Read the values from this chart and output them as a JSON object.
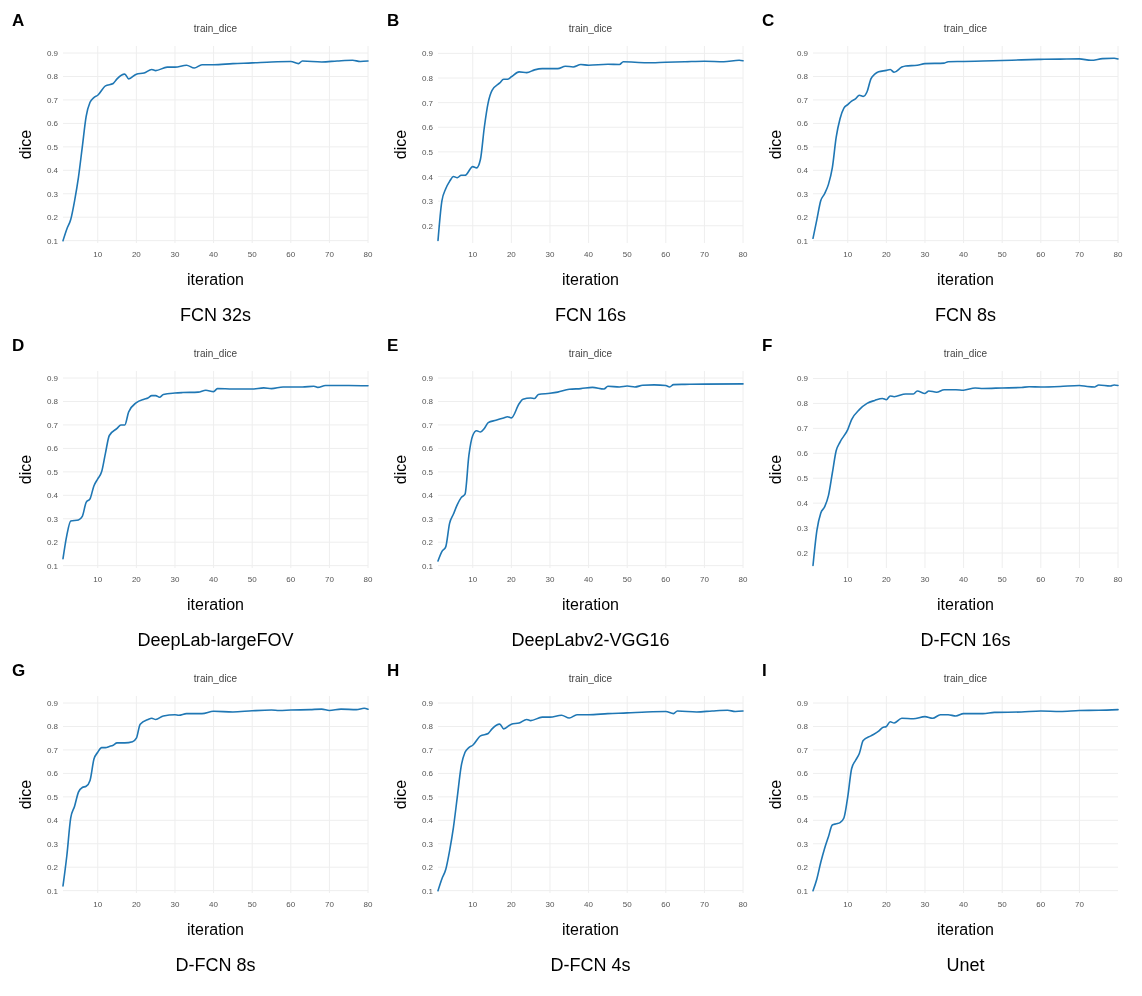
{
  "chart_data": [
    {
      "type": "line",
      "title": "train_dice",
      "xlabel": "iteration",
      "ylabel": "dice",
      "annotations": [
        "A",
        "FCN 32s"
      ],
      "color": "#1f77b4",
      "grid": true,
      "xlim": [
        1,
        80
      ],
      "xticks": [
        10,
        20,
        30,
        40,
        50,
        60,
        70,
        80
      ],
      "ylim": [
        0.09,
        0.93
      ],
      "yticks": [
        0.1,
        0.2,
        0.3,
        0.4,
        0.5,
        0.6,
        0.7,
        0.8,
        0.9
      ],
      "x": [
        1,
        2,
        3,
        4,
        5,
        6,
        7,
        8,
        9,
        10,
        12,
        14,
        15,
        17,
        18,
        20,
        22,
        24,
        25,
        28,
        30,
        33,
        35,
        37,
        40,
        45,
        50,
        55,
        60,
        62,
        63,
        68,
        72,
        76,
        78,
        80
      ],
      "values": [
        0.1,
        0.15,
        0.19,
        0.27,
        0.37,
        0.5,
        0.63,
        0.69,
        0.71,
        0.72,
        0.76,
        0.77,
        0.79,
        0.81,
        0.79,
        0.81,
        0.815,
        0.83,
        0.825,
        0.84,
        0.84,
        0.848,
        0.836,
        0.85,
        0.85,
        0.855,
        0.858,
        0.862,
        0.864,
        0.855,
        0.866,
        0.862,
        0.866,
        0.869,
        0.864,
        0.866
      ]
    },
    {
      "type": "line",
      "title": "train_dice",
      "xlabel": "iteration",
      "ylabel": "dice",
      "annotations": [
        "B",
        "FCN 16s"
      ],
      "color": "#1f77b4",
      "grid": true,
      "xlim": [
        1,
        80
      ],
      "xticks": [
        10,
        20,
        30,
        40,
        50,
        60,
        70,
        80
      ],
      "ylim": [
        0.13,
        0.93
      ],
      "yticks": [
        0.2,
        0.3,
        0.4,
        0.5,
        0.6,
        0.7,
        0.8,
        0.9
      ],
      "x": [
        1,
        2,
        3,
        4,
        5,
        6,
        7,
        8,
        10,
        11,
        12,
        13,
        14,
        15,
        17,
        18,
        19,
        20,
        22,
        24,
        26,
        28,
        32,
        34,
        36,
        38,
        40,
        45,
        48,
        49,
        55,
        60,
        65,
        70,
        75,
        79,
        80
      ],
      "values": [
        0.14,
        0.3,
        0.35,
        0.38,
        0.4,
        0.395,
        0.405,
        0.405,
        0.44,
        0.435,
        0.47,
        0.6,
        0.7,
        0.75,
        0.78,
        0.795,
        0.795,
        0.805,
        0.825,
        0.822,
        0.833,
        0.838,
        0.838,
        0.848,
        0.845,
        0.855,
        0.852,
        0.856,
        0.855,
        0.866,
        0.862,
        0.864,
        0.866,
        0.868,
        0.866,
        0.872,
        0.87
      ]
    },
    {
      "type": "line",
      "title": "train_dice",
      "xlabel": "iteration",
      "ylabel": "dice",
      "annotations": [
        "C",
        "FCN 8s"
      ],
      "color": "#1f77b4",
      "grid": true,
      "xlim": [
        1,
        80
      ],
      "xticks": [
        10,
        20,
        30,
        40,
        50,
        60,
        70,
        80
      ],
      "ylim": [
        0.09,
        0.93
      ],
      "yticks": [
        0.1,
        0.2,
        0.3,
        0.4,
        0.5,
        0.6,
        0.7,
        0.8,
        0.9
      ],
      "x": [
        1,
        2,
        3,
        4,
        5,
        6,
        7,
        8,
        9,
        10,
        11,
        12,
        13,
        14,
        15,
        16,
        17,
        18,
        20,
        21,
        22,
        24,
        25,
        28,
        30,
        35,
        36,
        40,
        45,
        50,
        55,
        60,
        65,
        70,
        73,
        76,
        79,
        80
      ],
      "values": [
        0.11,
        0.19,
        0.27,
        0.3,
        0.34,
        0.41,
        0.54,
        0.62,
        0.665,
        0.68,
        0.695,
        0.705,
        0.72,
        0.715,
        0.735,
        0.79,
        0.81,
        0.82,
        0.826,
        0.83,
        0.818,
        0.84,
        0.845,
        0.848,
        0.855,
        0.857,
        0.863,
        0.864,
        0.866,
        0.868,
        0.871,
        0.873,
        0.874,
        0.875,
        0.869,
        0.876,
        0.878,
        0.875
      ]
    },
    {
      "type": "line",
      "title": "train_dice",
      "xlabel": "iteration",
      "ylabel": "dice",
      "annotations": [
        "D",
        "DeepLab-largeFOV"
      ],
      "color": "#1f77b4",
      "grid": true,
      "xlim": [
        1,
        80
      ],
      "xticks": [
        10,
        20,
        30,
        40,
        50,
        60,
        70,
        80
      ],
      "ylim": [
        0.09,
        0.93
      ],
      "yticks": [
        0.1,
        0.2,
        0.3,
        0.4,
        0.5,
        0.6,
        0.7,
        0.8,
        0.9
      ],
      "x": [
        1,
        2,
        3,
        5,
        6,
        7,
        8,
        9,
        10,
        11,
        12,
        13,
        15,
        16,
        17,
        18,
        20,
        22,
        23,
        24,
        25,
        26,
        27,
        30,
        32,
        36,
        38,
        40,
        41,
        45,
        50,
        53,
        55,
        58,
        63,
        66,
        67,
        69,
        75,
        80
      ],
      "values": [
        0.13,
        0.23,
        0.29,
        0.295,
        0.31,
        0.37,
        0.385,
        0.44,
        0.47,
        0.5,
        0.58,
        0.655,
        0.685,
        0.7,
        0.7,
        0.755,
        0.795,
        0.81,
        0.815,
        0.825,
        0.825,
        0.818,
        0.83,
        0.836,
        0.838,
        0.84,
        0.848,
        0.842,
        0.855,
        0.853,
        0.853,
        0.858,
        0.855,
        0.862,
        0.862,
        0.865,
        0.86,
        0.868,
        0.868,
        0.867
      ]
    },
    {
      "type": "line",
      "title": "train_dice",
      "xlabel": "iteration",
      "ylabel": "dice",
      "annotations": [
        "E",
        "DeepLabv2-VGG16"
      ],
      "color": "#1f77b4",
      "grid": true,
      "xlim": [
        1,
        80
      ],
      "xticks": [
        10,
        20,
        30,
        40,
        50,
        60,
        70,
        80
      ],
      "ylim": [
        0.09,
        0.93
      ],
      "yticks": [
        0.1,
        0.2,
        0.3,
        0.4,
        0.5,
        0.6,
        0.7,
        0.8,
        0.9
      ],
      "x": [
        1,
        2,
        3,
        4,
        5,
        6,
        7,
        8,
        9,
        10,
        11,
        12,
        13,
        14,
        16,
        18,
        19,
        20,
        22,
        23,
        25,
        26,
        27,
        30,
        32,
        35,
        38,
        41,
        44,
        45,
        48,
        50,
        52,
        54,
        57,
        60,
        61,
        62,
        65,
        70,
        80
      ],
      "values": [
        0.12,
        0.16,
        0.18,
        0.28,
        0.32,
        0.36,
        0.39,
        0.405,
        0.57,
        0.655,
        0.675,
        0.67,
        0.685,
        0.71,
        0.72,
        0.73,
        0.735,
        0.73,
        0.79,
        0.81,
        0.815,
        0.813,
        0.83,
        0.835,
        0.84,
        0.852,
        0.855,
        0.86,
        0.853,
        0.865,
        0.862,
        0.866,
        0.862,
        0.869,
        0.871,
        0.868,
        0.862,
        0.872,
        0.873,
        0.874,
        0.875
      ]
    },
    {
      "type": "line",
      "title": "train_dice",
      "xlabel": "iteration",
      "ylabel": "dice",
      "annotations": [
        "F",
        "D-FCN 16s"
      ],
      "color": "#1f77b4",
      "grid": true,
      "xlim": [
        1,
        80
      ],
      "xticks": [
        10,
        20,
        30,
        40,
        50,
        60,
        70,
        80
      ],
      "ylim": [
        0.14,
        0.93
      ],
      "yticks": [
        0.2,
        0.3,
        0.4,
        0.5,
        0.6,
        0.7,
        0.8,
        0.9
      ],
      "x": [
        1,
        2,
        3,
        4,
        5,
        6,
        7,
        8,
        10,
        11,
        13,
        15,
        17,
        19,
        20,
        21,
        22,
        25,
        27,
        28,
        30,
        31,
        33,
        35,
        38,
        40,
        43,
        45,
        50,
        55,
        57,
        60,
        65,
        70,
        72,
        74,
        75,
        78,
        79,
        80
      ],
      "values": [
        0.15,
        0.29,
        0.36,
        0.385,
        0.43,
        0.52,
        0.61,
        0.645,
        0.695,
        0.735,
        0.775,
        0.8,
        0.812,
        0.82,
        0.815,
        0.83,
        0.827,
        0.838,
        0.838,
        0.85,
        0.84,
        0.85,
        0.845,
        0.855,
        0.855,
        0.853,
        0.862,
        0.86,
        0.862,
        0.864,
        0.867,
        0.866,
        0.868,
        0.872,
        0.868,
        0.866,
        0.874,
        0.87,
        0.874,
        0.872
      ]
    },
    {
      "type": "line",
      "title": "train_dice",
      "xlabel": "iteration",
      "ylabel": "dice",
      "annotations": [
        "G",
        "D-FCN 8s"
      ],
      "color": "#1f77b4",
      "grid": true,
      "xlim": [
        1,
        80
      ],
      "xticks": [
        10,
        20,
        30,
        40,
        50,
        60,
        70,
        80
      ],
      "ylim": [
        0.09,
        0.93
      ],
      "yticks": [
        0.1,
        0.2,
        0.3,
        0.4,
        0.5,
        0.6,
        0.7,
        0.8,
        0.9
      ],
      "x": [
        1,
        2,
        3,
        4,
        5,
        6,
        7,
        8,
        9,
        10,
        11,
        12,
        13,
        14,
        15,
        17,
        19,
        20,
        21,
        23,
        24,
        25,
        27,
        30,
        31,
        33,
        37,
        40,
        45,
        50,
        55,
        57,
        60,
        65,
        68,
        70,
        73,
        77,
        79,
        80
      ],
      "values": [
        0.12,
        0.25,
        0.41,
        0.46,
        0.52,
        0.54,
        0.545,
        0.57,
        0.66,
        0.69,
        0.71,
        0.71,
        0.715,
        0.72,
        0.73,
        0.73,
        0.735,
        0.75,
        0.81,
        0.83,
        0.835,
        0.83,
        0.845,
        0.85,
        0.848,
        0.855,
        0.855,
        0.865,
        0.862,
        0.867,
        0.87,
        0.868,
        0.87,
        0.872,
        0.874,
        0.868,
        0.874,
        0.872,
        0.878,
        0.874
      ]
    },
    {
      "type": "line",
      "title": "train_dice",
      "xlabel": "iteration",
      "ylabel": "dice",
      "annotations": [
        "H",
        "D-FCN 4s"
      ],
      "color": "#1f77b4",
      "grid": true,
      "xlim": [
        1,
        80
      ],
      "xticks": [
        10,
        20,
        30,
        40,
        50,
        60,
        70,
        80
      ],
      "ylim": [
        0.09,
        0.93
      ],
      "yticks": [
        0.1,
        0.2,
        0.3,
        0.4,
        0.5,
        0.6,
        0.7,
        0.8,
        0.9
      ],
      "x": [
        1,
        2,
        3,
        4,
        5,
        6,
        7,
        8,
        9,
        10,
        12,
        14,
        15,
        17,
        18,
        20,
        22,
        24,
        25,
        28,
        30,
        33,
        35,
        37,
        40,
        45,
        50,
        55,
        60,
        62,
        63,
        68,
        72,
        76,
        78,
        80
      ],
      "values": [
        0.1,
        0.15,
        0.19,
        0.27,
        0.37,
        0.5,
        0.63,
        0.69,
        0.71,
        0.72,
        0.76,
        0.77,
        0.79,
        0.81,
        0.79,
        0.81,
        0.815,
        0.83,
        0.825,
        0.84,
        0.84,
        0.848,
        0.836,
        0.85,
        0.85,
        0.855,
        0.858,
        0.862,
        0.864,
        0.855,
        0.866,
        0.862,
        0.866,
        0.869,
        0.864,
        0.866
      ]
    },
    {
      "type": "line",
      "title": "train_dice",
      "xlabel": "iteration",
      "ylabel": "dice",
      "annotations": [
        "I",
        "Unet"
      ],
      "color": "#1f77b4",
      "grid": true,
      "xlim": [
        1,
        80
      ],
      "xticks": [
        10,
        20,
        30,
        40,
        50,
        60,
        70
      ],
      "ylim": [
        0.09,
        0.93
      ],
      "yticks": [
        0.1,
        0.2,
        0.3,
        0.4,
        0.5,
        0.6,
        0.7,
        0.8,
        0.9
      ],
      "x": [
        1,
        2,
        3,
        4,
        5,
        6,
        7,
        8,
        9,
        10,
        11,
        12,
        13,
        14,
        16,
        18,
        19,
        20,
        21,
        22,
        24,
        27,
        30,
        32,
        34,
        36,
        38,
        40,
        45,
        48,
        55,
        60,
        65,
        70,
        75,
        80
      ],
      "values": [
        0.1,
        0.15,
        0.22,
        0.28,
        0.33,
        0.38,
        0.385,
        0.39,
        0.41,
        0.5,
        0.62,
        0.655,
        0.685,
        0.74,
        0.76,
        0.78,
        0.795,
        0.8,
        0.82,
        0.815,
        0.835,
        0.833,
        0.842,
        0.835,
        0.85,
        0.85,
        0.845,
        0.855,
        0.855,
        0.86,
        0.862,
        0.866,
        0.864,
        0.868,
        0.869,
        0.872
      ]
    }
  ]
}
